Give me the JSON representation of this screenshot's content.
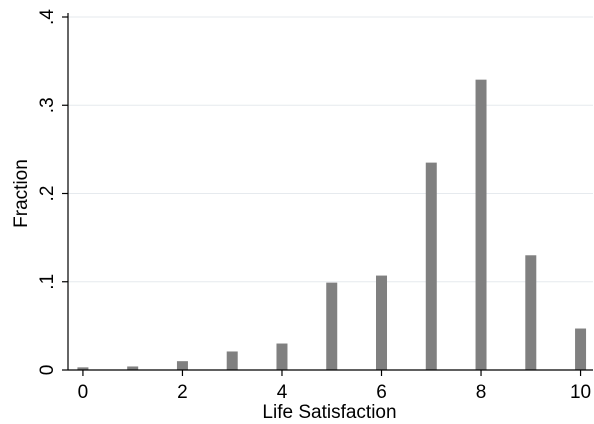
{
  "chart_data": {
    "type": "bar",
    "title": "",
    "xlabel": "Life Satisfaction",
    "ylabel": "Fraction",
    "x": [
      0,
      1,
      2,
      3,
      4,
      5,
      6,
      7,
      8,
      9,
      10
    ],
    "values": [
      0.003,
      0.004,
      0.01,
      0.021,
      0.03,
      0.099,
      0.107,
      0.235,
      0.329,
      0.13,
      0.047
    ],
    "xlim": [
      -0.3,
      10.25
    ],
    "ylim": [
      0,
      0.4
    ],
    "xticks": [
      0,
      2,
      4,
      6,
      8,
      10
    ],
    "xtick_labels": [
      "0",
      "2",
      "4",
      "6",
      "8",
      "10"
    ],
    "yticks": [
      0,
      0.1,
      0.2,
      0.3,
      0.4
    ],
    "ytick_labels": [
      "0",
      ".1",
      ".2",
      ".3",
      ".4"
    ],
    "grid": true,
    "bar_color": "#808080",
    "gridline_color": "#e6eaee",
    "axis_color": "#000000"
  }
}
